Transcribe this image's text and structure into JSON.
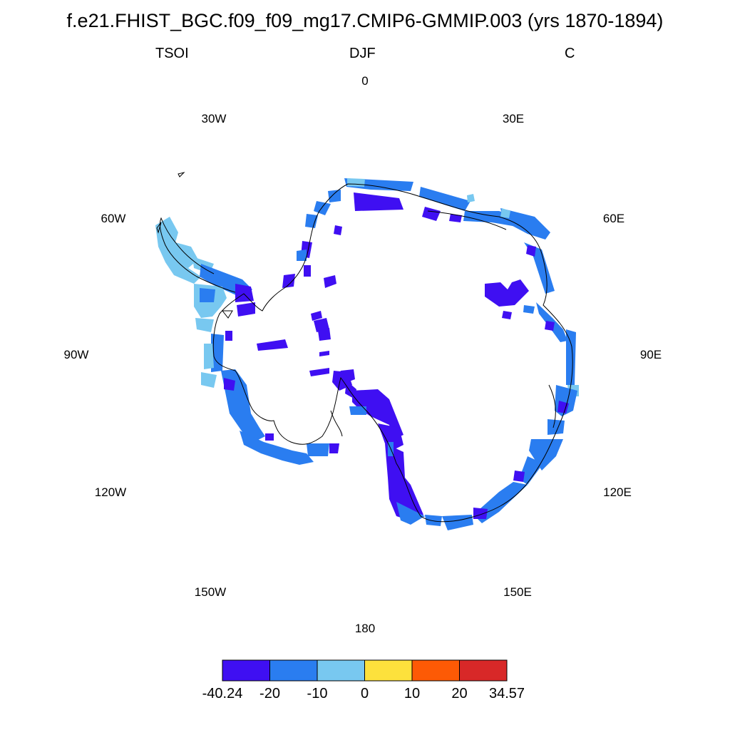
{
  "title": "f.e21.FHIST_BGC.f09_f09_mg17.CMIP6-GMMIP.003 (yrs 1870-1894)",
  "variable": "TSOI",
  "season": "DJF",
  "units": "C",
  "longitude_labels": {
    "lon_0": "0",
    "lon_30e": "30E",
    "lon_60e": "60E",
    "lon_90e": "90E",
    "lon_120e": "120E",
    "lon_150e": "150E",
    "lon_180": "180",
    "lon_150w": "150W",
    "lon_120w": "120W",
    "lon_90w": "90W",
    "lon_60w": "60W",
    "lon_30w": "30W"
  },
  "colorbar": {
    "colors": [
      "#3f0ff2",
      "#2a7df0",
      "#78c8f0",
      "#fde13c",
      "#fd5a05",
      "#d82828"
    ],
    "labels": [
      "-40.24",
      "-20",
      "-10",
      "0",
      "10",
      "20",
      "34.57"
    ]
  }
}
